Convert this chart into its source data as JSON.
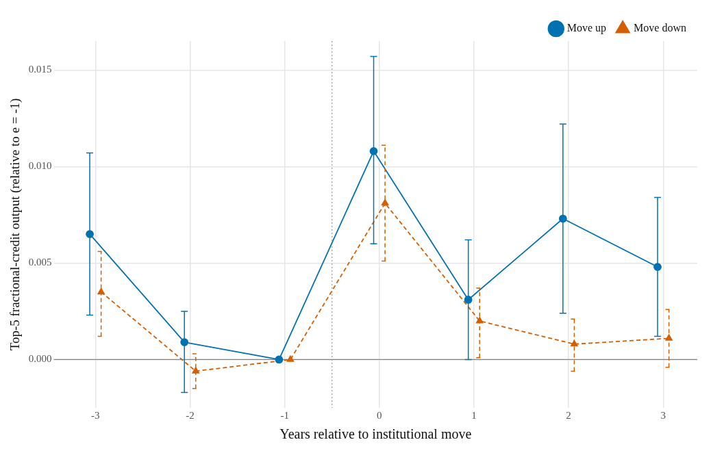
{
  "chart_data": {
    "type": "line",
    "xlabel": "Years relative to institutional move",
    "ylabel": "Top-5 fractional-credit output (relative to e = -1)",
    "xlim": [
      -3.44,
      3.36
    ],
    "xticks": [
      -3,
      -2,
      -1,
      0,
      1,
      2,
      3
    ],
    "ylim": [
      -0.0025,
      0.0165
    ],
    "yticks": [
      {
        "value": 0,
        "label": "0.000"
      },
      {
        "value": 0.005,
        "label": "0.005"
      },
      {
        "value": 0.01,
        "label": "0.010"
      },
      {
        "value": 0.015,
        "label": "0.015"
      }
    ],
    "grid": true,
    "legend": "top right",
    "ref_lines": [
      {
        "axis": "y",
        "value": 0,
        "color": "#808080",
        "line_style": "solid"
      },
      {
        "axis": "x",
        "value": -0.5,
        "color": "#999999",
        "line_style": "dotted"
      }
    ],
    "series": [
      {
        "name": "Move up",
        "color": "#0072b2",
        "marker": "circle",
        "line_style": "solid",
        "x": [
          -3.06,
          -2.06,
          -1.06,
          -0.06,
          0.94,
          1.94,
          2.94
        ],
        "values": [
          0.0065,
          0.0009,
          0,
          0.0108,
          0.0031,
          0.0073,
          0.0048
        ],
        "errors": [
          [
            0.0023,
            0.0107
          ],
          [
            -0.0017,
            0.0025
          ],
          null,
          [
            0.006,
            0.0157
          ],
          [
            0,
            0.0062
          ],
          [
            0.0024,
            0.0122
          ],
          [
            0.0012,
            0.0084
          ]
        ]
      },
      {
        "name": "Move down",
        "color": "#d55e00",
        "marker": "triangle",
        "line_style": "dashed",
        "x": [
          -2.94,
          -1.94,
          -0.94,
          0.06,
          1.06,
          2.06,
          3.06
        ],
        "values": [
          0.0035,
          -0.0006,
          0,
          0.0081,
          0.002,
          0.0008,
          0.0011
        ],
        "errors": [
          [
            0.0012,
            0.0056
          ],
          [
            -0.0015,
            0.0003
          ],
          null,
          [
            0.0051,
            0.0111
          ],
          [
            0.0001,
            0.0037
          ],
          [
            -0.0006,
            0.0021
          ],
          [
            -0.0004,
            0.0026
          ]
        ]
      }
    ]
  }
}
